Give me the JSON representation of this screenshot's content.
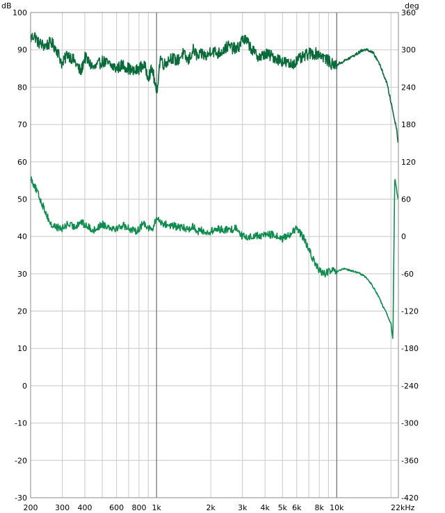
{
  "chart_data": {
    "type": "line",
    "title": "",
    "x_unit": "Hz",
    "x_scale": "log",
    "xlim": [
      200,
      22000
    ],
    "x_ticks": [
      {
        "value": 200,
        "label": "200"
      },
      {
        "value": 300,
        "label": "300"
      },
      {
        "value": 400,
        "label": "400"
      },
      {
        "value": 600,
        "label": "600"
      },
      {
        "value": 800,
        "label": "800"
      },
      {
        "value": 1000,
        "label": "1k"
      },
      {
        "value": 2000,
        "label": "2k"
      },
      {
        "value": 3000,
        "label": "3k"
      },
      {
        "value": 4000,
        "label": "4k"
      },
      {
        "value": 5000,
        "label": "5k"
      },
      {
        "value": 6000,
        "label": "6k"
      },
      {
        "value": 8000,
        "label": "8k"
      },
      {
        "value": 10000,
        "label": "10k"
      },
      {
        "value": 22000,
        "label": "22kHz"
      }
    ],
    "x_minor_grid": [
      200,
      300,
      400,
      500,
      600,
      700,
      800,
      900,
      1000,
      2000,
      3000,
      4000,
      5000,
      6000,
      7000,
      8000,
      9000,
      10000,
      20000
    ],
    "x_major_grid": [
      1000,
      10000
    ],
    "y_left": {
      "unit": "dB",
      "min": -30,
      "max": 100,
      "ticks": [
        100,
        90,
        80,
        70,
        60,
        50,
        40,
        30,
        20,
        10,
        0,
        -10,
        -20,
        -30
      ]
    },
    "y_right": {
      "unit": "deg",
      "min": -420,
      "max": 360,
      "ticks": [
        360,
        300,
        240,
        180,
        120,
        60,
        0,
        -60,
        -120,
        -180,
        -240,
        -300,
        -360,
        -420
      ]
    },
    "grid": true,
    "series": [
      {
        "axis": "left",
        "color": "#0a6b3a",
        "x": [
          200,
          210,
          220,
          240,
          260,
          280,
          300,
          320,
          350,
          380,
          400,
          450,
          500,
          550,
          600,
          650,
          700,
          750,
          800,
          850,
          900,
          950,
          1000,
          1050,
          1100,
          1200,
          1300,
          1400,
          1500,
          1600,
          1700,
          1800,
          1900,
          2000,
          2200,
          2500,
          2800,
          3000,
          3200,
          3500,
          3800,
          4000,
          4500,
          5000,
          5500,
          6000,
          6500,
          7000,
          7500,
          8000,
          8500,
          9000,
          9500,
          10000,
          11000,
          12000,
          13000,
          14000,
          15000,
          16000,
          17000,
          18000,
          19000,
          20000,
          21000,
          21500,
          22000
        ],
        "y": [
          93,
          94,
          92,
          91,
          92,
          90,
          86,
          89,
          87,
          84,
          88,
          85,
          87,
          86,
          85,
          86,
          85,
          84,
          85,
          86,
          83,
          85,
          78,
          88,
          86,
          88,
          87,
          89,
          87,
          90,
          88,
          89,
          88,
          90,
          89,
          91,
          90,
          93,
          92,
          89,
          88,
          89,
          88,
          87,
          86,
          87,
          88,
          89,
          89,
          89,
          88,
          87,
          86,
          86,
          87,
          88,
          89,
          90,
          90,
          89,
          87,
          84,
          81,
          76,
          71,
          69,
          64
        ]
      },
      {
        "axis": "right",
        "color": "#0e8c4e",
        "x": [
          200,
          210,
          220,
          240,
          260,
          280,
          300,
          320,
          350,
          380,
          400,
          450,
          500,
          550,
          600,
          650,
          700,
          750,
          800,
          850,
          900,
          950,
          1000,
          1050,
          1100,
          1200,
          1300,
          1400,
          1500,
          1600,
          1700,
          1800,
          1900,
          2000,
          2200,
          2500,
          2800,
          3000,
          3200,
          3500,
          3800,
          4000,
          4500,
          5000,
          5500,
          6000,
          6500,
          7000,
          7500,
          8000,
          8500,
          9000,
          9500,
          10000,
          11000,
          12000,
          13000,
          14000,
          15000,
          16000,
          17000,
          18000,
          19000,
          20000,
          20500,
          21000,
          21500,
          22000
        ],
        "y": [
          95,
          82,
          68,
          42,
          18,
          15,
          12,
          20,
          15,
          24,
          18,
          10,
          20,
          15,
          13,
          18,
          14,
          8,
          12,
          22,
          15,
          10,
          30,
          24,
          20,
          18,
          15,
          14,
          12,
          16,
          8,
          10,
          5,
          8,
          12,
          10,
          14,
          0,
          -2,
          2,
          0,
          4,
          2,
          -4,
          4,
          12,
          0,
          -22,
          -40,
          -55,
          -60,
          -57,
          -55,
          -57,
          -52,
          -55,
          -58,
          -62,
          -70,
          -82,
          -95,
          -112,
          -125,
          -140,
          -168,
          95,
          75,
          55
        ]
      }
    ]
  }
}
